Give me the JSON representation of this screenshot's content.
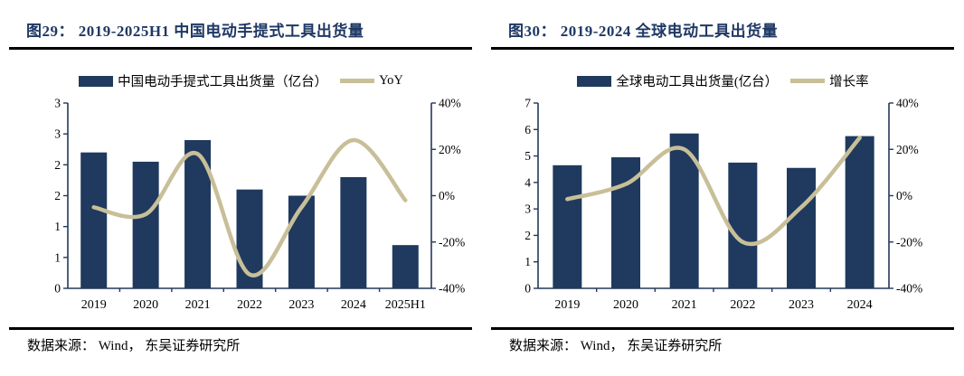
{
  "colors": {
    "bar": "#1f3a5e",
    "line": "#c8bf99",
    "title": "#1f3864",
    "axis": "#24395a",
    "rule": "#000000",
    "text": "#000000"
  },
  "panels": [
    {
      "title": "图29： 2019-2025H1 中国电动手提式工具出货量",
      "legend": {
        "bar_label": "中国电动手提式工具出货量（亿台）",
        "line_label": "YoY"
      },
      "source": "数据来源： Wind， 东吴证券研究所"
    },
    {
      "title": "图30： 2019-2024 全球电动工具出货量",
      "legend": {
        "bar_label": "全球电动工具出货量(亿台）",
        "line_label": "增长率"
      },
      "source": "数据来源： Wind， 东吴证券研究所"
    }
  ],
  "chart_data": [
    {
      "type": "bar+line",
      "title": "2019-2025H1 中国电动手提式工具出货量",
      "categories": [
        "2019",
        "2020",
        "2021",
        "2022",
        "2023",
        "2024",
        "2025H1"
      ],
      "series": [
        {
          "name": "中国电动手提式工具出货量（亿台）",
          "type": "bar",
          "axis": "left",
          "values": [
            2.2,
            2.05,
            2.4,
            1.6,
            1.5,
            1.8,
            0.7
          ]
        },
        {
          "name": "YoY",
          "type": "line",
          "axis": "right",
          "unit": "%",
          "values": [
            -5,
            -8,
            18,
            -34,
            -5,
            24,
            -2
          ]
        }
      ],
      "left_axis": {
        "min": 0,
        "max": 3,
        "step": 0.5,
        "labels_top_to_bottom": [
          "3",
          "3",
          "2",
          "2",
          "1",
          "1",
          "0"
        ]
      },
      "right_axis": {
        "min": -40,
        "max": 40,
        "step": 20,
        "labels_top_to_bottom": [
          "40%",
          "20%",
          "0%",
          "-20%",
          "-40%"
        ]
      },
      "legend_position": "top",
      "grid": false
    },
    {
      "type": "bar+line",
      "title": "2019-2024 全球电动工具出货量",
      "categories": [
        "2019",
        "2020",
        "2021",
        "2022",
        "2023",
        "2024"
      ],
      "series": [
        {
          "name": "全球电动工具出货量(亿台）",
          "type": "bar",
          "axis": "left",
          "values": [
            4.65,
            4.95,
            5.85,
            4.75,
            4.55,
            5.75
          ]
        },
        {
          "name": "增长率",
          "type": "line",
          "axis": "right",
          "unit": "%",
          "values": [
            -1.5,
            5,
            20,
            -20,
            -5,
            25
          ]
        }
      ],
      "left_axis": {
        "min": 0,
        "max": 7,
        "step": 1,
        "labels_top_to_bottom": [
          "7",
          "6",
          "5",
          "4",
          "3",
          "2",
          "1",
          "0"
        ]
      },
      "right_axis": {
        "min": -40,
        "max": 40,
        "step": 20,
        "labels_top_to_bottom": [
          "40%",
          "20%",
          "0%",
          "-20%",
          "-40%"
        ]
      },
      "legend_position": "top",
      "grid": false
    }
  ]
}
